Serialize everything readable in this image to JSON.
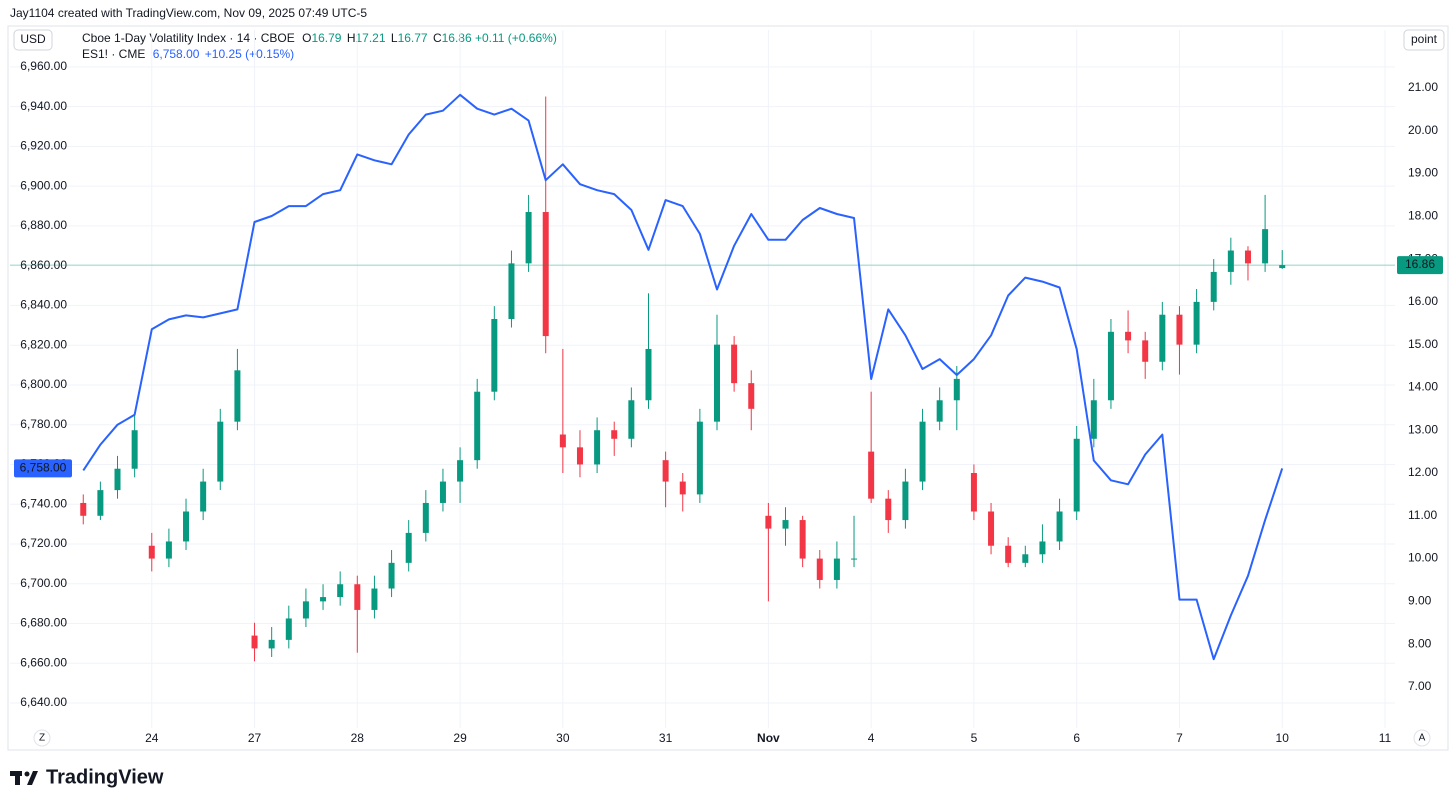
{
  "header": {
    "credit": "Jay1104 created with TradingView.com, Nov 09, 2025 07:49 UTC-5",
    "currency": "USD",
    "unit": "point",
    "left_button": "Z",
    "right_button": "A"
  },
  "footer": {
    "brand": "TradingView"
  },
  "chart_data": {
    "type": "candlestick",
    "ohlc_letters": [
      "O",
      "H",
      "L",
      "C"
    ],
    "categories": [
      null,
      null,
      null,
      null,
      null,
      null,
      "24",
      null,
      null,
      null,
      null,
      null,
      "27",
      null,
      null,
      null,
      null,
      null,
      "28",
      null,
      null,
      null,
      null,
      null,
      "29",
      null,
      null,
      null,
      null,
      null,
      "30",
      null,
      null,
      null,
      null,
      null,
      "31",
      null,
      null,
      null,
      null,
      null,
      "Nov",
      null,
      null,
      null,
      null,
      null,
      "4",
      null,
      null,
      null,
      null,
      null,
      "5",
      null,
      null,
      null,
      null,
      null,
      "6",
      null,
      null,
      null,
      null,
      null,
      "7",
      null,
      null,
      null,
      null,
      null,
      "10",
      null,
      null,
      null,
      null,
      null,
      "11"
    ],
    "ylim": [
      6627.4,
      6966
    ],
    "yticks": [
      {
        "value": 6640,
        "label": "6,640.00"
      },
      {
        "value": 6660,
        "label": "6,660.00"
      },
      {
        "value": 6680,
        "label": "6,680.00"
      },
      {
        "value": 6700,
        "label": "6,700.00"
      },
      {
        "value": 6720,
        "label": "6,720.00"
      },
      {
        "value": 6740,
        "label": "6,740.00"
      },
      {
        "value": 6760,
        "label": "6,760.00"
      },
      {
        "value": 6780,
        "label": "6,780.00"
      },
      {
        "value": 6800,
        "label": "6,800.00"
      },
      {
        "value": 6820,
        "label": "6,820.00"
      },
      {
        "value": 6840,
        "label": "6,840.00"
      },
      {
        "value": 6860,
        "label": "6,860.00"
      },
      {
        "value": 6880,
        "label": "6,880.00"
      },
      {
        "value": 6900,
        "label": "6,900.00"
      },
      {
        "value": 6920,
        "label": "6,920.00"
      },
      {
        "value": 6940,
        "label": "6,940.00"
      },
      {
        "value": 6960,
        "label": "6,960.00"
      }
    ],
    "y2lim": [
      6.04,
      21.77
    ],
    "y2ticks": [
      {
        "value": 7,
        "label": "7.00"
      },
      {
        "value": 8,
        "label": "8.00"
      },
      {
        "value": 9,
        "label": "9.00"
      },
      {
        "value": 10,
        "label": "10.00"
      },
      {
        "value": 11,
        "label": "11.00"
      },
      {
        "value": 12,
        "label": "12.00"
      },
      {
        "value": 13,
        "label": "13.00"
      },
      {
        "value": 14,
        "label": "14.00"
      },
      {
        "value": 15,
        "label": "15.00"
      },
      {
        "value": 16,
        "label": "16.00"
      },
      {
        "value": 17,
        "label": "17.00"
      },
      {
        "value": 18,
        "label": "18.00"
      },
      {
        "value": 19,
        "label": "19.00"
      },
      {
        "value": 20,
        "label": "20.00"
      },
      {
        "value": 21,
        "label": "21.00"
      }
    ],
    "grid": true,
    "series": [
      {
        "name": "Cboe 1-Day Volatility Index · 14 · CBOE",
        "type": "candlestick",
        "axis": "y2",
        "up_color": "#089981",
        "down_color": "#f23645",
        "change_label": "+0.11 (+0.66%)",
        "open": [
          null,
          null,
          11.3,
          11.0,
          11.6,
          12.1,
          10.3,
          10.0,
          10.4,
          11.1,
          11.8,
          13.2,
          8.2,
          7.9,
          8.1,
          8.6,
          9.0,
          9.1,
          9.4,
          8.8,
          9.3,
          9.9,
          10.6,
          11.3,
          11.8,
          12.3,
          13.9,
          15.6,
          16.9,
          18.1,
          12.9,
          12.6,
          12.2,
          13.0,
          12.8,
          13.7,
          12.3,
          11.8,
          11.5,
          13.2,
          15.0,
          14.1,
          11.0,
          10.7,
          10.9,
          10.0,
          9.5,
          10.0,
          12.5,
          11.4,
          10.9,
          11.8,
          13.2,
          13.7,
          12.0,
          11.1,
          10.3,
          9.9,
          10.1,
          10.4,
          11.1,
          12.8,
          13.7,
          15.3,
          15.1,
          14.6,
          15.7,
          15.0,
          16.0,
          16.7,
          17.2,
          16.9,
          16.79,
          null,
          null,
          null,
          null,
          null,
          null
        ],
        "high": [
          null,
          null,
          11.5,
          11.8,
          12.4,
          13.4,
          10.6,
          10.7,
          11.4,
          12.1,
          13.5,
          14.9,
          8.5,
          8.4,
          8.9,
          9.3,
          9.4,
          9.7,
          9.6,
          9.6,
          10.2,
          10.9,
          11.6,
          12.1,
          12.6,
          14.2,
          15.9,
          17.2,
          18.5,
          20.8,
          14.9,
          13.0,
          13.3,
          13.2,
          14.0,
          16.2,
          12.5,
          12.0,
          13.5,
          15.7,
          15.2,
          14.4,
          11.3,
          11.2,
          11.0,
          10.2,
          10.4,
          11.0,
          13.9,
          11.6,
          12.1,
          13.5,
          14.0,
          14.5,
          12.2,
          11.3,
          10.5,
          10.3,
          10.8,
          11.4,
          13.1,
          14.2,
          15.6,
          15.8,
          15.3,
          16.0,
          15.9,
          16.3,
          17.0,
          17.5,
          17.3,
          18.5,
          17.21,
          null,
          null,
          null,
          null,
          null,
          null
        ],
        "low": [
          null,
          null,
          10.8,
          10.9,
          11.4,
          11.9,
          9.7,
          9.8,
          10.2,
          10.9,
          11.6,
          13.0,
          7.6,
          7.7,
          7.9,
          8.4,
          8.8,
          8.9,
          7.8,
          8.6,
          9.1,
          9.7,
          10.4,
          11.1,
          11.3,
          12.1,
          13.7,
          15.4,
          16.7,
          14.8,
          12.0,
          11.9,
          12.0,
          12.4,
          12.6,
          13.5,
          11.2,
          11.1,
          11.3,
          13.0,
          13.9,
          13.0,
          9.0,
          10.3,
          9.8,
          9.3,
          9.3,
          9.8,
          11.3,
          10.6,
          10.7,
          11.6,
          13.0,
          13.0,
          10.9,
          10.1,
          9.8,
          9.8,
          9.9,
          10.2,
          10.9,
          12.6,
          13.5,
          14.8,
          14.2,
          14.4,
          14.3,
          14.8,
          15.8,
          16.4,
          16.5,
          16.7,
          16.77,
          null,
          null,
          null,
          null,
          null,
          null
        ],
        "close": [
          null,
          null,
          11.0,
          11.6,
          12.1,
          13.0,
          10.0,
          10.4,
          11.1,
          11.8,
          13.2,
          14.4,
          7.9,
          8.1,
          8.6,
          9.0,
          9.1,
          9.4,
          8.8,
          9.3,
          9.9,
          10.6,
          11.3,
          11.8,
          12.3,
          13.9,
          15.6,
          16.9,
          18.1,
          15.2,
          12.6,
          12.2,
          13.0,
          12.8,
          13.7,
          14.9,
          11.8,
          11.5,
          13.2,
          15.0,
          14.1,
          13.5,
          10.7,
          10.9,
          10.0,
          9.5,
          10.0,
          10.0,
          11.4,
          10.9,
          11.8,
          13.2,
          13.7,
          14.2,
          11.1,
          10.3,
          9.9,
          10.1,
          10.4,
          11.1,
          12.8,
          13.7,
          15.3,
          15.1,
          14.6,
          15.7,
          15.0,
          16.0,
          16.7,
          17.2,
          16.9,
          17.7,
          16.86,
          null,
          null,
          null,
          null,
          null,
          null
        ]
      },
      {
        "name": "ES1! · CME",
        "type": "line",
        "axis": "y",
        "color": "#2962ff",
        "last_label": "6,758.00",
        "change_label": "+10.25 (+0.15%)",
        "values": [
          null,
          null,
          6757,
          6770,
          6780,
          6785,
          6828,
          6833,
          6835,
          6834,
          6836,
          6838,
          6882,
          6885,
          6890,
          6890,
          6896,
          6898,
          6916,
          6913,
          6911,
          6926,
          6936,
          6938,
          6946,
          6939,
          6936,
          6939,
          6933,
          6903,
          6911,
          6901,
          6898,
          6896,
          6888,
          6868,
          6893,
          6890,
          6876,
          6848,
          6870,
          6886,
          6873,
          6873,
          6883,
          6889,
          6886,
          6884,
          6803,
          6838,
          6825,
          6808,
          6813,
          6805,
          6813,
          6825,
          6845,
          6854,
          6852,
          6849,
          6818,
          6762,
          6752,
          6750,
          6765,
          6775,
          6692,
          6692,
          6662,
          6684,
          6704,
          6732,
          6758,
          null,
          null,
          null,
          null,
          null,
          null
        ]
      }
    ]
  }
}
